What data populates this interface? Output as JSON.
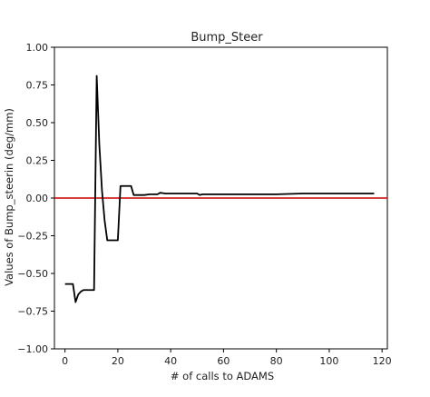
{
  "chart_data": {
    "type": "line",
    "title": "Bump_Steer",
    "xlabel": "# of calls to ADAMS",
    "ylabel": "Values of Bump_steerin (deg/mm)",
    "xlim": [
      -4,
      122
    ],
    "ylim": [
      -1.0,
      1.0
    ],
    "xticks": [
      0,
      20,
      40,
      60,
      80,
      100,
      120
    ],
    "yticks": [
      -1.0,
      -0.75,
      -0.5,
      -0.25,
      0.0,
      0.25,
      0.5,
      0.75,
      1.0
    ],
    "xtick_labels": [
      "0",
      "20",
      "40",
      "60",
      "80",
      "100",
      "120"
    ],
    "ytick_labels": [
      "−1.00",
      "−0.75",
      "−0.50",
      "−0.25",
      "0.00",
      "0.25",
      "0.50",
      "0.75",
      "1.00"
    ],
    "grid": false,
    "legend": false,
    "series": [
      {
        "color": "#000000",
        "x": [
          0,
          1,
          2,
          3,
          4,
          5,
          6,
          7,
          8,
          9,
          10,
          11,
          12,
          13,
          14,
          15,
          16,
          17,
          18,
          19,
          20,
          21,
          22,
          23,
          24,
          25,
          26,
          27,
          28,
          29,
          30,
          32,
          34,
          35,
          36,
          38,
          40,
          45,
          50,
          51,
          52,
          55,
          60,
          70,
          80,
          90,
          100,
          110,
          117
        ],
        "y": [
          -0.57,
          -0.57,
          -0.57,
          -0.57,
          -0.69,
          -0.64,
          -0.62,
          -0.61,
          -0.61,
          -0.61,
          -0.61,
          -0.61,
          0.81,
          0.35,
          0.05,
          -0.15,
          -0.28,
          -0.28,
          -0.28,
          -0.28,
          -0.28,
          0.08,
          0.08,
          0.08,
          0.08,
          0.08,
          0.02,
          0.02,
          0.02,
          0.02,
          0.02,
          0.025,
          0.025,
          0.025,
          0.035,
          0.03,
          0.03,
          0.03,
          0.03,
          0.02,
          0.025,
          0.025,
          0.025,
          0.025,
          0.025,
          0.03,
          0.03,
          0.03,
          0.03
        ]
      }
    ],
    "reference_lines": [
      {
        "axis": "y",
        "value": 0.0,
        "color": "#cc0000"
      }
    ]
  }
}
